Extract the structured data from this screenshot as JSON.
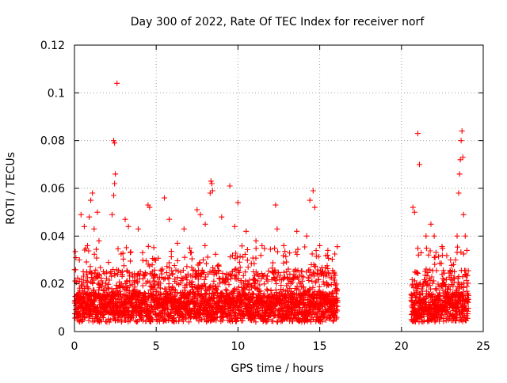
{
  "chart_data": {
    "type": "scatter",
    "title": "Day 300 of 2022, Rate Of TEC Index for receiver norf",
    "xlabel": "GPS time / hours",
    "ylabel": "ROTI / TECUs",
    "xlim": [
      0,
      25
    ],
    "ylim": [
      0,
      0.12
    ],
    "xticks": [
      0,
      5,
      10,
      15,
      20,
      25
    ],
    "xtick_labels": [
      "0",
      "5",
      "10",
      "15",
      "20",
      "25"
    ],
    "yticks": [
      0,
      0.02,
      0.04,
      0.06,
      0.08,
      0.1,
      0.12
    ],
    "ytick_labels": [
      "0",
      "0.02",
      "0.04",
      "0.06",
      "0.08",
      "0.1",
      "0.12"
    ],
    "grid": true,
    "marker": "+",
    "color": "#ff0000",
    "data_gap_hours": [
      16.1,
      20.6
    ],
    "points": [
      [
        0.3,
        0.03
      ],
      [
        0.4,
        0.049
      ],
      [
        0.6,
        0.044
      ],
      [
        0.8,
        0.036
      ],
      [
        0.9,
        0.048
      ],
      [
        1.0,
        0.055
      ],
      [
        1.1,
        0.058
      ],
      [
        1.2,
        0.043
      ],
      [
        1.4,
        0.05
      ],
      [
        1.5,
        0.038
      ],
      [
        2.3,
        0.049
      ],
      [
        2.4,
        0.057
      ],
      [
        2.45,
        0.062
      ],
      [
        2.5,
        0.066
      ],
      [
        2.4,
        0.08
      ],
      [
        2.45,
        0.079
      ],
      [
        2.6,
        0.104
      ],
      [
        3.1,
        0.047
      ],
      [
        3.3,
        0.044
      ],
      [
        3.9,
        0.043
      ],
      [
        4.5,
        0.053
      ],
      [
        4.6,
        0.052
      ],
      [
        5.5,
        0.056
      ],
      [
        5.8,
        0.047
      ],
      [
        6.3,
        0.037
      ],
      [
        6.7,
        0.043
      ],
      [
        7.1,
        0.033
      ],
      [
        7.5,
        0.051
      ],
      [
        7.7,
        0.049
      ],
      [
        8.0,
        0.045
      ],
      [
        8.3,
        0.058
      ],
      [
        8.35,
        0.063
      ],
      [
        8.4,
        0.062
      ],
      [
        8.45,
        0.059
      ],
      [
        9.0,
        0.048
      ],
      [
        9.5,
        0.061
      ],
      [
        9.8,
        0.044
      ],
      [
        10.0,
        0.054
      ],
      [
        10.5,
        0.042
      ],
      [
        11.1,
        0.038
      ],
      [
        12.3,
        0.053
      ],
      [
        12.4,
        0.043
      ],
      [
        12.8,
        0.036
      ],
      [
        13.6,
        0.042
      ],
      [
        14.2,
        0.04
      ],
      [
        14.4,
        0.055
      ],
      [
        14.6,
        0.059
      ],
      [
        14.7,
        0.052
      ],
      [
        15.0,
        0.036
      ],
      [
        15.5,
        0.034
      ],
      [
        20.7,
        0.052
      ],
      [
        20.8,
        0.05
      ],
      [
        21.0,
        0.083
      ],
      [
        21.1,
        0.07
      ],
      [
        21.2,
        0.033
      ],
      [
        21.5,
        0.04
      ],
      [
        21.8,
        0.045
      ],
      [
        22.0,
        0.04
      ],
      [
        22.5,
        0.032
      ],
      [
        23.0,
        0.03
      ],
      [
        23.4,
        0.04
      ],
      [
        23.5,
        0.058
      ],
      [
        23.55,
        0.066
      ],
      [
        23.6,
        0.072
      ],
      [
        23.65,
        0.08
      ],
      [
        23.7,
        0.084
      ],
      [
        23.75,
        0.073
      ],
      [
        23.8,
        0.049
      ],
      [
        23.9,
        0.04
      ],
      [
        24.0,
        0.034
      ]
    ],
    "dense_band": {
      "note": "many additional points between these hour ranges, mostly 0.005-0.03 TECU",
      "segments": [
        [
          0.0,
          16.1
        ],
        [
          20.6,
          24.1
        ]
      ]
    }
  }
}
